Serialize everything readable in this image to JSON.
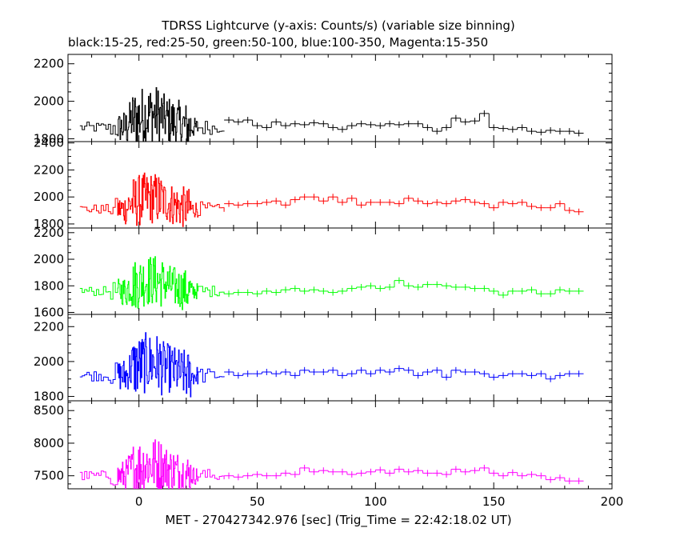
{
  "chart_data": {
    "type": "line",
    "title": "TDRSS Lightcurve (y-axis: Counts/s) (variable size binning)",
    "subtitle": "black:15-25, red:25-50, green:50-100, blue:100-350, Magenta:15-350",
    "xlabel": "MET - 270427342.976 [sec] (Trig_Time = 22:42:18.02 UT)",
    "ylabel": "",
    "xlim": [
      -30,
      200
    ],
    "xticks": [
      0,
      50,
      100,
      150,
      200
    ],
    "grid": false,
    "panels": [
      {
        "color": "#000000",
        "ylim": [
          1785,
          2250
        ],
        "yticks": [
          1800,
          2000,
          2200
        ],
        "baseline": 1860,
        "burst_sd": 125,
        "x": [
          38,
          42,
          46,
          50,
          54,
          58,
          62,
          66,
          70,
          74,
          78,
          82,
          86,
          90,
          94,
          98,
          102,
          106,
          110,
          114,
          118,
          122,
          126,
          130,
          134,
          138,
          142,
          146,
          150,
          154,
          158,
          162,
          166,
          170,
          174,
          178,
          182,
          186
        ],
        "values": [
          1900,
          1890,
          1900,
          1870,
          1860,
          1890,
          1870,
          1880,
          1875,
          1885,
          1880,
          1860,
          1850,
          1870,
          1880,
          1875,
          1870,
          1880,
          1875,
          1880,
          1880,
          1860,
          1840,
          1860,
          1910,
          1890,
          1895,
          1935,
          1860,
          1855,
          1850,
          1860,
          1840,
          1835,
          1845,
          1840,
          1840,
          1830
        ]
      },
      {
        "color": "#ff0000",
        "ylim": [
          1770,
          2410
        ],
        "yticks": [
          1800,
          2000,
          2200,
          2400
        ],
        "baseline": 1910,
        "burst_sd": 150,
        "x": [
          38,
          42,
          46,
          50,
          54,
          58,
          62,
          66,
          70,
          74,
          78,
          82,
          86,
          90,
          94,
          98,
          102,
          106,
          110,
          114,
          118,
          122,
          126,
          130,
          134,
          138,
          142,
          146,
          150,
          154,
          158,
          162,
          166,
          170,
          174,
          178,
          182,
          186
        ],
        "values": [
          1950,
          1940,
          1950,
          1950,
          1960,
          1970,
          1940,
          1980,
          2000,
          2000,
          1970,
          2000,
          1960,
          1990,
          1940,
          1960,
          1960,
          1960,
          1950,
          1990,
          1970,
          1950,
          1960,
          1950,
          1970,
          1980,
          1960,
          1950,
          1920,
          1960,
          1950,
          1960,
          1930,
          1920,
          1920,
          1950,
          1900,
          1890
        ]
      },
      {
        "color": "#00ff00",
        "ylim": [
          1585,
          2235
        ],
        "yticks": [
          1600,
          1800,
          2000,
          2200
        ],
        "baseline": 1760,
        "burst_sd": 150,
        "x": [
          38,
          42,
          46,
          50,
          54,
          58,
          62,
          66,
          70,
          74,
          78,
          82,
          86,
          90,
          94,
          98,
          102,
          106,
          110,
          114,
          118,
          122,
          126,
          130,
          134,
          138,
          142,
          146,
          150,
          154,
          158,
          162,
          166,
          170,
          174,
          178,
          182,
          186
        ],
        "values": [
          1740,
          1750,
          1750,
          1740,
          1760,
          1750,
          1770,
          1780,
          1760,
          1770,
          1760,
          1750,
          1760,
          1780,
          1790,
          1800,
          1780,
          1790,
          1840,
          1800,
          1790,
          1810,
          1810,
          1800,
          1790,
          1790,
          1780,
          1780,
          1760,
          1730,
          1760,
          1760,
          1770,
          1740,
          1740,
          1770,
          1760,
          1760
        ]
      },
      {
        "color": "#0000ff",
        "ylim": [
          1775,
          2270
        ],
        "yticks": [
          1800,
          2000,
          2200
        ],
        "baseline": 1920,
        "burst_sd": 135,
        "x": [
          38,
          42,
          46,
          50,
          54,
          58,
          62,
          66,
          70,
          74,
          78,
          82,
          86,
          90,
          94,
          98,
          102,
          106,
          110,
          114,
          118,
          122,
          126,
          130,
          134,
          138,
          142,
          146,
          150,
          154,
          158,
          162,
          166,
          170,
          174,
          178,
          182,
          186
        ],
        "values": [
          1940,
          1920,
          1930,
          1930,
          1940,
          1930,
          1940,
          1920,
          1950,
          1940,
          1940,
          1950,
          1920,
          1930,
          1950,
          1930,
          1950,
          1940,
          1960,
          1950,
          1920,
          1940,
          1950,
          1910,
          1950,
          1940,
          1940,
          1930,
          1910,
          1920,
          1930,
          1930,
          1920,
          1930,
          1900,
          1920,
          1930,
          1930
        ]
      },
      {
        "color": "#ff00ff",
        "ylim": [
          7300,
          8650
        ],
        "yticks": [
          7500,
          8000,
          8500
        ],
        "baseline": 7500,
        "burst_sd": 330,
        "x": [
          38,
          42,
          46,
          50,
          54,
          58,
          62,
          66,
          70,
          74,
          78,
          82,
          86,
          90,
          94,
          98,
          102,
          106,
          110,
          114,
          118,
          122,
          126,
          130,
          134,
          138,
          142,
          146,
          150,
          154,
          158,
          162,
          166,
          170,
          174,
          178,
          182,
          186
        ],
        "values": [
          7500,
          7480,
          7500,
          7520,
          7500,
          7500,
          7540,
          7520,
          7620,
          7560,
          7580,
          7560,
          7560,
          7520,
          7540,
          7560,
          7590,
          7540,
          7600,
          7560,
          7580,
          7540,
          7540,
          7520,
          7600,
          7560,
          7580,
          7620,
          7540,
          7500,
          7550,
          7500,
          7520,
          7500,
          7440,
          7470,
          7420,
          7420
        ]
      }
    ]
  }
}
